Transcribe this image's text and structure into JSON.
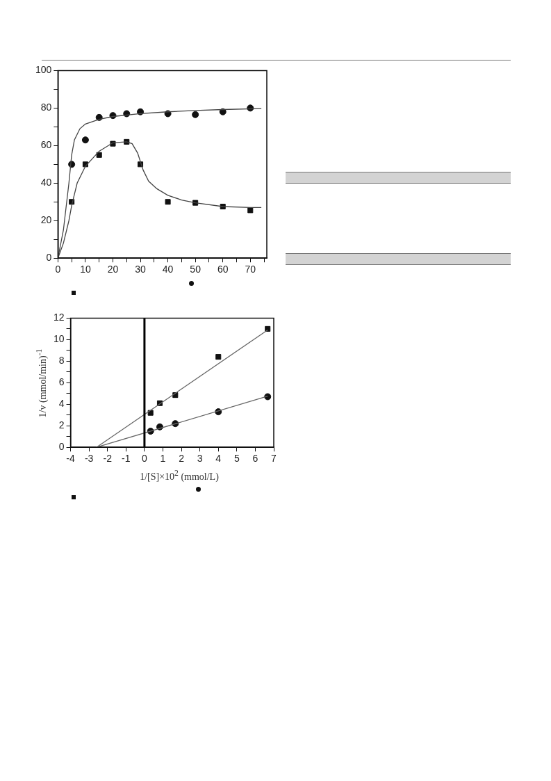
{
  "chart_data": [
    {
      "type": "scatter",
      "xlim": [
        0,
        76
      ],
      "ylim": [
        0,
        100
      ],
      "xticks": [
        0,
        {
          "value": 5,
          "label": null
        },
        10,
        {
          "value": 15,
          "label": null
        },
        20,
        {
          "value": 25,
          "label": null
        },
        30,
        {
          "value": 35,
          "label": null
        },
        40,
        {
          "value": 45,
          "label": null
        },
        50,
        {
          "value": 55,
          "label": null
        },
        60,
        {
          "value": 65,
          "label": null
        },
        70,
        {
          "value": 75,
          "label": null
        }
      ],
      "yticks": [
        0,
        {
          "value": 10,
          "label": null
        },
        20,
        {
          "value": 30,
          "label": null
        },
        40,
        {
          "value": 50,
          "label": null
        },
        60,
        {
          "value": 70,
          "label": null
        },
        80,
        {
          "value": 90,
          "label": null
        },
        100
      ],
      "grid": false,
      "series": [
        {
          "type": "line",
          "marker": "none",
          "color": "#444444",
          "x": [
            0,
            2,
            4,
            5,
            6,
            8,
            10,
            15,
            20,
            30,
            40,
            50,
            60,
            74
          ],
          "values": [
            0,
            15,
            40,
            55,
            63,
            69,
            71.5,
            74,
            75.5,
            77,
            78,
            78.7,
            79.2,
            79.7
          ]
        },
        {
          "type": "line",
          "marker": "none",
          "color": "#444444",
          "x": [
            0,
            2,
            4,
            5,
            7,
            10,
            15,
            20,
            25,
            27,
            29,
            31,
            33,
            36,
            40,
            45,
            50,
            60,
            70,
            74
          ],
          "values": [
            0,
            8,
            20,
            28,
            40,
            49,
            57,
            61.5,
            62,
            61,
            56,
            47,
            41,
            37,
            33.5,
            31,
            29.5,
            27.5,
            27,
            27
          ]
        },
        {
          "type": "scatter",
          "marker": "circle",
          "color": "#111111",
          "x": [
            5,
            10,
            15,
            20,
            25,
            30,
            40,
            50,
            60,
            70
          ],
          "values": [
            50,
            63,
            75,
            76,
            77,
            78,
            77,
            76.5,
            78,
            80
          ]
        },
        {
          "type": "scatter",
          "marker": "square",
          "color": "#111111",
          "x": [
            5,
            10,
            15,
            20,
            25,
            30,
            40,
            50,
            60,
            70
          ],
          "values": [
            30,
            50,
            55,
            61,
            62,
            50,
            30,
            29.5,
            27.5,
            25.5
          ]
        }
      ]
    },
    {
      "type": "scatter",
      "xlim": [
        -4,
        7
      ],
      "ylim": [
        0,
        12
      ],
      "xticks": [
        -4,
        -3,
        -2,
        -1,
        0,
        1,
        2,
        3,
        4,
        5,
        6,
        7
      ],
      "yticks": [
        0,
        {
          "value": 1,
          "label": null
        },
        2,
        {
          "value": 3,
          "label": null
        },
        4,
        {
          "value": 5,
          "label": null
        },
        6,
        {
          "value": 7,
          "label": null
        },
        8,
        {
          "value": 9,
          "label": null
        },
        10,
        {
          "value": 11,
          "label": null
        },
        12
      ],
      "xlabel": "1/[S]×10$^{2}$ (mmol/L)",
      "ylabel": "1/v (mmol/min)$^{-1}$",
      "grid": false,
      "ref_lines": [
        {
          "axis": "x",
          "value": 0,
          "color": "#000000"
        }
      ],
      "series": [
        {
          "type": "line",
          "marker": "none",
          "color": "#666666",
          "x": [
            -2.6,
            6.67
          ],
          "values": [
            0,
            10.9
          ]
        },
        {
          "type": "line",
          "marker": "none",
          "color": "#666666",
          "x": [
            -2.6,
            6.67
          ],
          "values": [
            0,
            4.75
          ]
        },
        {
          "type": "scatter",
          "marker": "square",
          "color": "#111111",
          "x": [
            0.33,
            0.83,
            1.67,
            4,
            6.67
          ],
          "values": [
            3.2,
            4.1,
            4.85,
            8.4,
            11
          ]
        },
        {
          "type": "scatter",
          "marker": "circle",
          "color": "#111111",
          "x": [
            0.33,
            0.83,
            1.67,
            4,
            6.67
          ],
          "values": [
            1.5,
            1.9,
            2.2,
            3.3,
            4.7
          ]
        }
      ]
    }
  ]
}
